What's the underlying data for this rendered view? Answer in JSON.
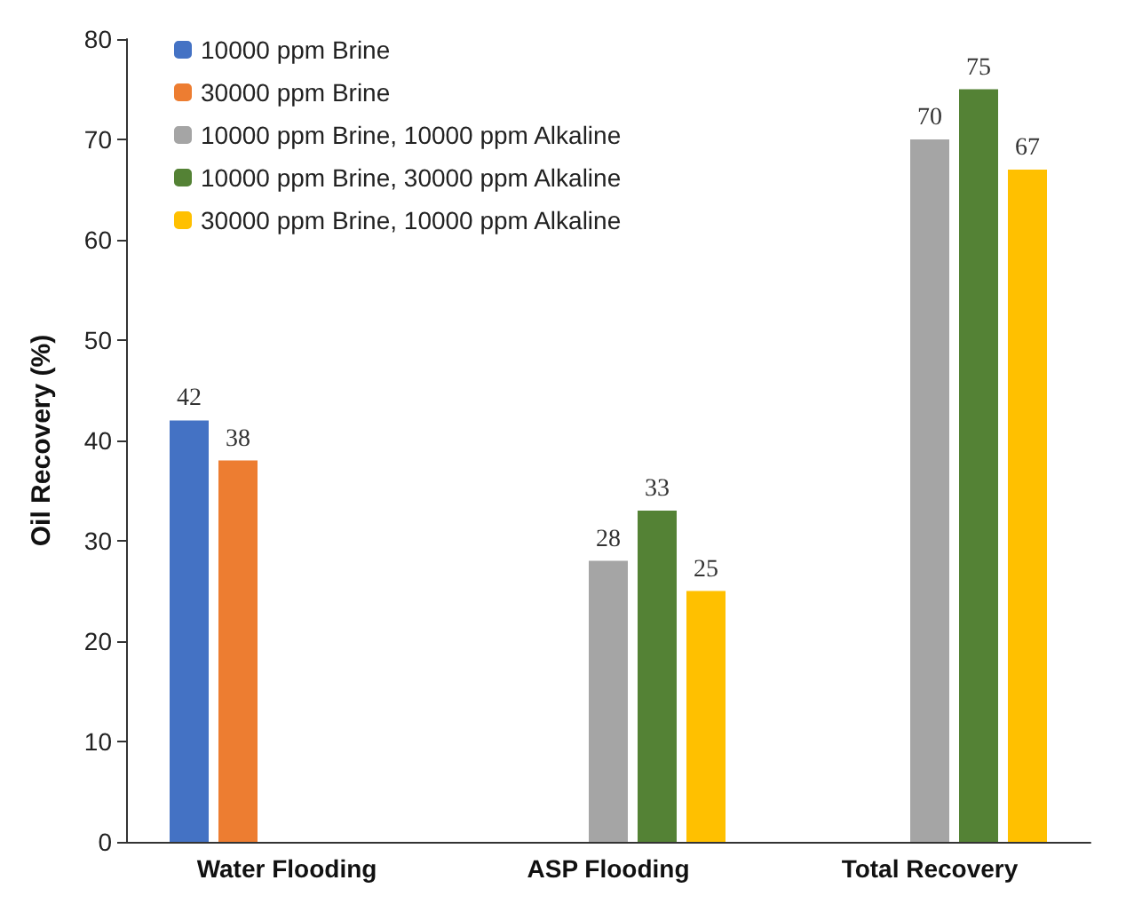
{
  "chart_data": {
    "type": "bar",
    "ylabel": "Oil Recovery (%)",
    "categories": [
      "Water Flooding",
      "ASP Flooding",
      "Total Recovery"
    ],
    "series": [
      {
        "name": "10000 ppm Brine",
        "color": "#4472c4",
        "values": [
          42,
          null,
          null
        ]
      },
      {
        "name": "30000 ppm Brine",
        "color": "#ed7d31",
        "values": [
          38,
          null,
          null
        ]
      },
      {
        "name": "10000 ppm Brine, 10000 ppm Alkaline",
        "color": "#a5a5a5",
        "values": [
          null,
          28,
          70
        ]
      },
      {
        "name": "10000 ppm Brine, 30000 ppm Alkaline",
        "color": "#548235",
        "values": [
          null,
          33,
          75
        ]
      },
      {
        "name": "30000 ppm Brine, 10000 ppm Alkaline",
        "color": "#ffc000",
        "values": [
          null,
          25,
          67
        ]
      }
    ],
    "ylim": [
      0,
      80
    ],
    "yticks": [
      0,
      10,
      20,
      30,
      40,
      50,
      60,
      70,
      80
    ],
    "grid": false,
    "legend": "top left",
    "data_labels": true
  }
}
